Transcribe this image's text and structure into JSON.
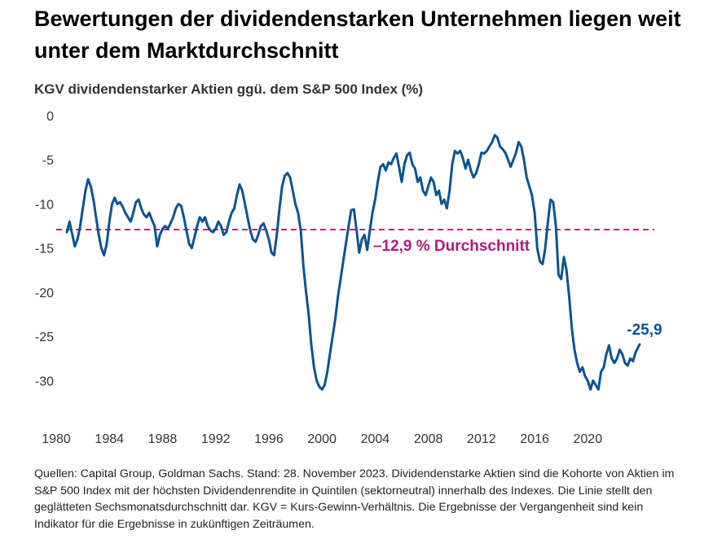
{
  "title": "Bewertungen der dividendenstarken Unternehmen liegen weit unter dem Marktdurchschnitt",
  "subtitle": "KGV dividendenstarker Aktien ggü. dem S&P 500 Index (%)",
  "footnote": "Quellen: Capital Group, Goldman Sachs. Stand: 28. November 2023. Dividendenstarke Aktien sind die Kohorte von Aktien im S&P 500 Index mit der höchsten Dividendenrendite in Quintilen (sektorneutral) innerhalb des Indexes. Die Linie stellt den geglätteten Sechsmonatsdurchschnitt dar. KGV = Kurs-Gewinn-Verhältnis. Die Ergebnisse der Vergangenheit sind kein Indikator für die Ergebnisse in zukünftigen Zeiträumen.",
  "chart_data": {
    "type": "line",
    "title": "KGV dividendenstarker Aktien ggü. dem S&P 500 Index (%)",
    "xlabel": "",
    "ylabel": "",
    "xlim": [
      1980,
      2025.5
    ],
    "ylim": [
      -33,
      0
    ],
    "x_ticks": [
      1980,
      1984,
      1988,
      1992,
      1996,
      2000,
      2004,
      2008,
      2012,
      2016,
      2020
    ],
    "x_tick_labels": [
      "1980",
      "1984",
      "1988",
      "1992",
      "1996",
      "2000",
      "2004",
      "2008",
      "2012",
      "2016",
      "2020"
    ],
    "y_ticks": [
      0,
      -5,
      -10,
      -15,
      -20,
      -25,
      -30
    ],
    "y_tick_labels": [
      "0",
      "-5",
      "-10",
      "-15",
      "-20",
      "-25",
      "-30"
    ],
    "grid": false,
    "series": [
      {
        "name": "KGV dividendenstarker Aktien ggü. S&P 500",
        "color": "#0b5394",
        "points": [
          [
            1980.8,
            -13.2
          ],
          [
            1981.0,
            -12.0
          ],
          [
            1981.2,
            -13.4
          ],
          [
            1981.4,
            -14.8
          ],
          [
            1981.6,
            -14.0
          ],
          [
            1981.8,
            -12.5
          ],
          [
            1982.0,
            -10.5
          ],
          [
            1982.2,
            -8.5
          ],
          [
            1982.4,
            -7.2
          ],
          [
            1982.6,
            -8.0
          ],
          [
            1982.8,
            -9.5
          ],
          [
            1983.0,
            -11.5
          ],
          [
            1983.2,
            -13.5
          ],
          [
            1983.4,
            -15.0
          ],
          [
            1983.6,
            -15.8
          ],
          [
            1983.8,
            -14.5
          ],
          [
            1984.0,
            -12.0
          ],
          [
            1984.2,
            -10.0
          ],
          [
            1984.4,
            -9.3
          ],
          [
            1984.6,
            -10.0
          ],
          [
            1984.8,
            -9.8
          ],
          [
            1985.0,
            -10.3
          ],
          [
            1985.2,
            -11.0
          ],
          [
            1985.4,
            -11.5
          ],
          [
            1985.6,
            -12.0
          ],
          [
            1985.8,
            -11.0
          ],
          [
            1986.0,
            -9.8
          ],
          [
            1986.2,
            -9.5
          ],
          [
            1986.4,
            -10.5
          ],
          [
            1986.6,
            -11.2
          ],
          [
            1986.8,
            -11.5
          ],
          [
            1987.0,
            -11.0
          ],
          [
            1987.2,
            -11.8
          ],
          [
            1987.4,
            -12.5
          ],
          [
            1987.6,
            -14.8
          ],
          [
            1987.8,
            -13.5
          ],
          [
            1988.0,
            -12.8
          ],
          [
            1988.2,
            -12.5
          ],
          [
            1988.4,
            -12.8
          ],
          [
            1988.6,
            -12.2
          ],
          [
            1988.8,
            -11.5
          ],
          [
            1989.0,
            -10.5
          ],
          [
            1989.2,
            -10.0
          ],
          [
            1989.4,
            -10.2
          ],
          [
            1989.6,
            -11.5
          ],
          [
            1989.8,
            -13.0
          ],
          [
            1990.0,
            -14.5
          ],
          [
            1990.2,
            -15.0
          ],
          [
            1990.4,
            -13.8
          ],
          [
            1990.6,
            -12.5
          ],
          [
            1990.8,
            -11.5
          ],
          [
            1991.0,
            -12.0
          ],
          [
            1991.2,
            -11.5
          ],
          [
            1991.4,
            -12.5
          ],
          [
            1991.6,
            -13.0
          ],
          [
            1991.8,
            -13.2
          ],
          [
            1992.0,
            -12.8
          ],
          [
            1992.2,
            -12.0
          ],
          [
            1992.4,
            -12.5
          ],
          [
            1992.6,
            -13.5
          ],
          [
            1992.8,
            -13.2
          ],
          [
            1993.0,
            -12.0
          ],
          [
            1993.2,
            -11.0
          ],
          [
            1993.4,
            -10.5
          ],
          [
            1993.6,
            -9.0
          ],
          [
            1993.8,
            -7.8
          ],
          [
            1994.0,
            -8.5
          ],
          [
            1994.2,
            -10.0
          ],
          [
            1994.4,
            -11.5
          ],
          [
            1994.6,
            -13.0
          ],
          [
            1994.8,
            -14.0
          ],
          [
            1995.0,
            -14.3
          ],
          [
            1995.2,
            -13.5
          ],
          [
            1995.4,
            -12.5
          ],
          [
            1995.6,
            -12.2
          ],
          [
            1995.8,
            -13.0
          ],
          [
            1996.0,
            -14.0
          ],
          [
            1996.2,
            -15.5
          ],
          [
            1996.4,
            -15.8
          ],
          [
            1996.6,
            -13.5
          ],
          [
            1996.8,
            -10.5
          ],
          [
            1997.0,
            -8.0
          ],
          [
            1997.2,
            -6.8
          ],
          [
            1997.4,
            -6.5
          ],
          [
            1997.6,
            -7.0
          ],
          [
            1997.8,
            -8.5
          ],
          [
            1998.0,
            -10.0
          ],
          [
            1998.2,
            -11.0
          ],
          [
            1998.4,
            -13.0
          ],
          [
            1998.6,
            -17.0
          ],
          [
            1998.8,
            -20.0
          ],
          [
            1999.0,
            -22.5
          ],
          [
            1999.2,
            -26.0
          ],
          [
            1999.4,
            -28.5
          ],
          [
            1999.6,
            -30.0
          ],
          [
            1999.8,
            -30.7
          ],
          [
            2000.0,
            -31.0
          ],
          [
            2000.2,
            -30.5
          ],
          [
            2000.4,
            -29.0
          ],
          [
            2000.6,
            -27.0
          ],
          [
            2000.8,
            -25.0
          ],
          [
            2001.0,
            -23.0
          ],
          [
            2001.2,
            -20.5
          ],
          [
            2001.4,
            -18.5
          ],
          [
            2001.6,
            -16.5
          ],
          [
            2001.8,
            -14.5
          ],
          [
            2002.0,
            -12.5
          ],
          [
            2002.2,
            -10.7
          ],
          [
            2002.4,
            -10.6
          ],
          [
            2002.6,
            -13.0
          ],
          [
            2002.8,
            -15.5
          ],
          [
            2003.0,
            -14.0
          ],
          [
            2003.2,
            -13.5
          ],
          [
            2003.4,
            -15.2
          ],
          [
            2003.6,
            -13.0
          ],
          [
            2003.8,
            -11.0
          ],
          [
            2004.0,
            -9.5
          ],
          [
            2004.2,
            -7.5
          ],
          [
            2004.4,
            -5.8
          ],
          [
            2004.6,
            -5.5
          ],
          [
            2004.8,
            -6.2
          ],
          [
            2005.0,
            -5.3
          ],
          [
            2005.2,
            -5.5
          ],
          [
            2005.4,
            -4.8
          ],
          [
            2005.6,
            -4.3
          ],
          [
            2005.8,
            -5.8
          ],
          [
            2006.0,
            -7.5
          ],
          [
            2006.2,
            -5.5
          ],
          [
            2006.4,
            -4.5
          ],
          [
            2006.6,
            -4.2
          ],
          [
            2006.8,
            -5.5
          ],
          [
            2007.0,
            -6.0
          ],
          [
            2007.2,
            -7.5
          ],
          [
            2007.4,
            -7.0
          ],
          [
            2007.6,
            -8.5
          ],
          [
            2007.8,
            -9.0
          ],
          [
            2008.0,
            -8.0
          ],
          [
            2008.2,
            -7.0
          ],
          [
            2008.4,
            -7.5
          ],
          [
            2008.6,
            -9.0
          ],
          [
            2008.8,
            -8.5
          ],
          [
            2009.0,
            -10.0
          ],
          [
            2009.2,
            -9.5
          ],
          [
            2009.4,
            -10.5
          ],
          [
            2009.6,
            -8.5
          ],
          [
            2009.8,
            -5.5
          ],
          [
            2010.0,
            -4.0
          ],
          [
            2010.2,
            -4.3
          ],
          [
            2010.4,
            -4.0
          ],
          [
            2010.6,
            -4.8
          ],
          [
            2010.8,
            -6.0
          ],
          [
            2011.0,
            -5.0
          ],
          [
            2011.2,
            -6.2
          ],
          [
            2011.4,
            -7.0
          ],
          [
            2011.6,
            -6.5
          ],
          [
            2011.8,
            -5.5
          ],
          [
            2012.0,
            -4.2
          ],
          [
            2012.2,
            -4.3
          ],
          [
            2012.4,
            -4.0
          ],
          [
            2012.6,
            -3.5
          ],
          [
            2012.8,
            -3.0
          ],
          [
            2013.0,
            -2.2
          ],
          [
            2013.2,
            -2.5
          ],
          [
            2013.4,
            -3.5
          ],
          [
            2013.6,
            -3.8
          ],
          [
            2013.8,
            -4.2
          ],
          [
            2014.0,
            -5.0
          ],
          [
            2014.2,
            -5.8
          ],
          [
            2014.4,
            -5.0
          ],
          [
            2014.6,
            -4.2
          ],
          [
            2014.8,
            -3.0
          ],
          [
            2015.0,
            -3.5
          ],
          [
            2015.2,
            -5.0
          ],
          [
            2015.4,
            -7.0
          ],
          [
            2015.6,
            -8.0
          ],
          [
            2015.8,
            -9.0
          ],
          [
            2016.0,
            -11.0
          ],
          [
            2016.2,
            -15.0
          ],
          [
            2016.4,
            -16.5
          ],
          [
            2016.6,
            -16.8
          ],
          [
            2016.8,
            -15.0
          ],
          [
            2017.0,
            -12.0
          ],
          [
            2017.2,
            -9.5
          ],
          [
            2017.4,
            -9.8
          ],
          [
            2017.6,
            -12.5
          ],
          [
            2017.8,
            -18.0
          ],
          [
            2018.0,
            -18.5
          ],
          [
            2018.2,
            -16.0
          ],
          [
            2018.4,
            -17.5
          ],
          [
            2018.6,
            -20.5
          ],
          [
            2018.8,
            -24.0
          ],
          [
            2019.0,
            -26.5
          ],
          [
            2019.2,
            -28.0
          ],
          [
            2019.4,
            -29.0
          ],
          [
            2019.6,
            -28.5
          ],
          [
            2019.8,
            -29.5
          ],
          [
            2020.0,
            -30.0
          ],
          [
            2020.2,
            -31.0
          ],
          [
            2020.4,
            -30.0
          ],
          [
            2020.6,
            -30.5
          ],
          [
            2020.8,
            -31.0
          ],
          [
            2021.0,
            -29.0
          ],
          [
            2021.2,
            -28.5
          ],
          [
            2021.4,
            -27.0
          ],
          [
            2021.6,
            -26.0
          ],
          [
            2021.8,
            -27.5
          ],
          [
            2022.0,
            -28.0
          ],
          [
            2022.2,
            -27.5
          ],
          [
            2022.4,
            -26.5
          ],
          [
            2022.6,
            -27.0
          ],
          [
            2022.8,
            -28.0
          ],
          [
            2023.0,
            -28.3
          ],
          [
            2023.2,
            -27.5
          ],
          [
            2023.4,
            -27.8
          ],
          [
            2023.6,
            -26.8
          ],
          [
            2023.8,
            -26.2
          ],
          [
            2023.9,
            -25.9
          ]
        ]
      }
    ],
    "reference_line": {
      "value": -12.9,
      "label": "–12,9 % Durchschnitt",
      "color": "#b5187a",
      "style": "dashed"
    },
    "end_label": {
      "x": 2023.9,
      "y": -25.9,
      "text": "-25,9",
      "color": "#0b5394"
    }
  }
}
